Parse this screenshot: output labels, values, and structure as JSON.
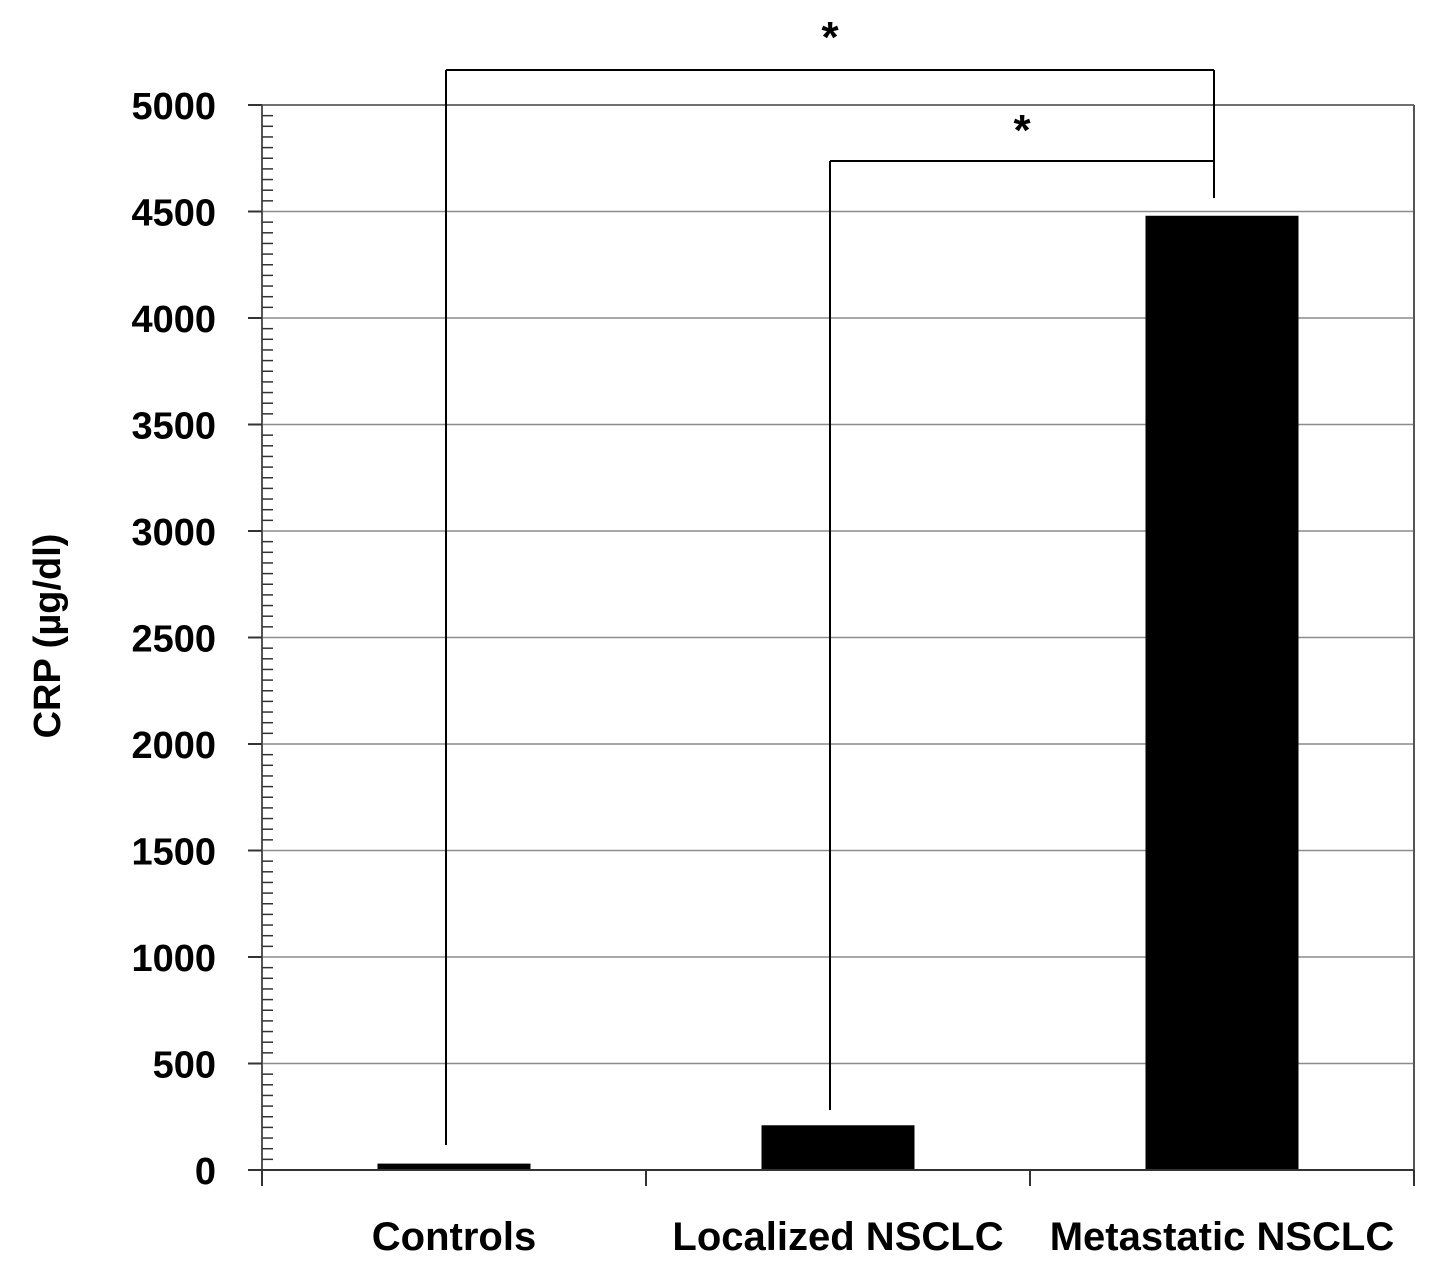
{
  "chart_data": {
    "type": "bar",
    "title": "",
    "xlabel": "",
    "ylabel": "CRP (µg/dl)",
    "categories": [
      "Controls",
      "Localized NSCLC",
      "Metastatic NSCLC"
    ],
    "values": [
      30,
      210,
      4480
    ],
    "ylim": [
      0,
      5000
    ],
    "y_major_ticks": [
      0,
      500,
      1000,
      1500,
      2000,
      2500,
      3000,
      3500,
      4000,
      4500,
      5000
    ],
    "y_minor_step": 50,
    "grid": true,
    "legend": "none",
    "bar_color": "#000000",
    "grid_color": "#8c8c8c",
    "significance": [
      {
        "from_category": 0,
        "to_category": 2,
        "label": "*"
      },
      {
        "from_category": 1,
        "to_category": 2,
        "label": "*"
      }
    ]
  }
}
